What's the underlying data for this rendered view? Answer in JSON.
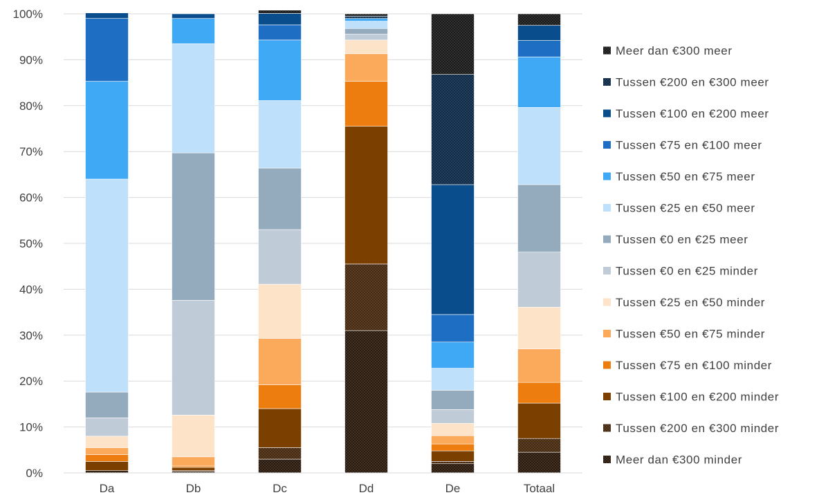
{
  "chart_data": {
    "type": "bar",
    "stacked": true,
    "percent_stacked": true,
    "title": "",
    "xlabel": "",
    "ylabel": "",
    "ylim": [
      0,
      100
    ],
    "y_ticks": [
      "0%",
      "10%",
      "20%",
      "30%",
      "40%",
      "50%",
      "60%",
      "70%",
      "80%",
      "90%",
      "100%"
    ],
    "grid": true,
    "legend_position": "right",
    "categories": [
      "Da",
      "Db",
      "Dc",
      "Dd",
      "De",
      "Totaal"
    ],
    "series": [
      {
        "name": "Meer dan €300 minder",
        "color": "#2b1a0c",
        "pattern": "dots",
        "values": [
          0.5,
          0.3,
          3.0,
          31.0,
          2.0,
          4.5
        ]
      },
      {
        "name": "Tussen €200 en €300 minder",
        "color": "#4a2a0e",
        "pattern": "dots",
        "values": [
          0.0,
          0.2,
          2.5,
          14.5,
          0.5,
          3.0
        ]
      },
      {
        "name": "Tussen €100 en €200 minder",
        "color": "#7b3f00",
        "pattern": "",
        "values": [
          2.0,
          0.7,
          8.5,
          30.0,
          2.3,
          7.7
        ]
      },
      {
        "name": "Tussen €75 en €100 minder",
        "color": "#ed7d0f",
        "pattern": "",
        "values": [
          1.5,
          0.3,
          5.2,
          9.8,
          1.5,
          4.5
        ]
      },
      {
        "name": "Tussen €50 en €75 minder",
        "color": "#fbaa5c",
        "pattern": "",
        "values": [
          1.5,
          2.0,
          10.1,
          6.0,
          1.8,
          7.3
        ]
      },
      {
        "name": "Tussen €25 en €50 minder",
        "color": "#fde3c8",
        "pattern": "",
        "values": [
          2.5,
          9.1,
          11.8,
          3.0,
          2.7,
          9.1
        ]
      },
      {
        "name": "Tussen €0 en €25 minder",
        "color": "#bfcbd6",
        "pattern": "",
        "values": [
          4.0,
          25.0,
          11.9,
          1.3,
          3.0,
          12.0
        ]
      },
      {
        "name": "Tussen €0 en €25 meer",
        "color": "#94aabd",
        "pattern": "",
        "values": [
          5.6,
          32.1,
          13.4,
          1.2,
          4.2,
          14.7
        ]
      },
      {
        "name": "Tussen €25 en €50 meer",
        "color": "#bfe0fb",
        "pattern": "",
        "values": [
          46.4,
          23.8,
          14.7,
          1.6,
          4.8,
          16.8
        ]
      },
      {
        "name": "Tussen €50 en €75 meer",
        "color": "#3fa9f5",
        "pattern": "",
        "values": [
          21.3,
          5.5,
          13.2,
          0.6,
          5.7,
          11.0
        ]
      },
      {
        "name": "Tussen €75 en €100 meer",
        "color": "#1e6fc4",
        "pattern": "",
        "values": [
          13.7,
          0.0,
          3.3,
          0.0,
          6.0,
          3.6
        ]
      },
      {
        "name": "Tussen €100 en €200 meer",
        "color": "#0a4d8c",
        "pattern": "",
        "values": [
          1.2,
          1.0,
          2.5,
          0.0,
          28.3,
          3.3
        ]
      },
      {
        "name": "Tussen €200 en €300 meer",
        "color": "#0c2a4a",
        "pattern": "dots",
        "values": [
          0.0,
          0.0,
          0.0,
          0.5,
          24.0,
          0.0
        ]
      },
      {
        "name": "Meer dan €300 meer",
        "color": "#1a1a1a",
        "pattern": "dots",
        "values": [
          0.0,
          0.0,
          0.7,
          0.5,
          13.2,
          2.5
        ]
      }
    ]
  }
}
